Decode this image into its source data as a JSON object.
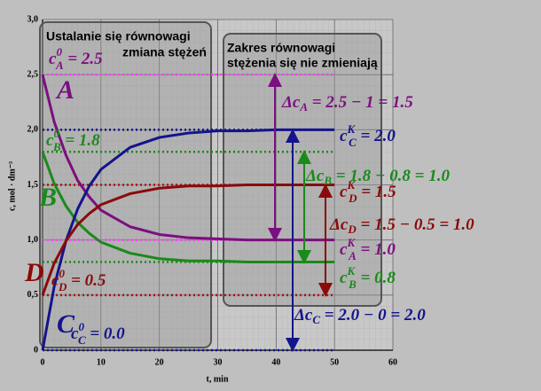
{
  "chart_data": {
    "type": "line",
    "y_label": "c, mol · dm⁻³",
    "x_label": "t, min",
    "xlim": [
      0,
      60
    ],
    "xticks": [
      0,
      10,
      20,
      30,
      40,
      50,
      60
    ],
    "ylim": [
      0,
      3
    ],
    "yticks": [
      0,
      {
        "value": 0.5,
        "label": "0,5"
      },
      {
        "value": 1,
        "label": "1,0"
      },
      {
        "value": 1.5,
        "label": "1,5"
      },
      {
        "value": 2,
        "label": "2,0"
      },
      {
        "value": 2.5,
        "label": "2,5"
      },
      {
        "value": 3,
        "label": "3,0"
      }
    ],
    "grid": true,
    "x": [
      0,
      2,
      4,
      6,
      8,
      10,
      15,
      20,
      25,
      30,
      35,
      40,
      45,
      50
    ],
    "series": [
      {
        "name": "A",
        "color": "#7b0f7f",
        "values": [
          2.5,
          2.07,
          1.77,
          1.54,
          1.39,
          1.27,
          1.12,
          1.05,
          1.02,
          1.01,
          1.0,
          1.0,
          1.0,
          1.0
        ]
      },
      {
        "name": "B",
        "color": "#1a8a1a",
        "values": [
          1.8,
          1.51,
          1.31,
          1.16,
          1.06,
          0.98,
          0.88,
          0.83,
          0.81,
          0.81,
          0.8,
          0.8,
          0.8,
          0.8
        ]
      },
      {
        "name": "C",
        "color": "#14148c",
        "values": [
          0,
          0.58,
          0.99,
          1.28,
          1.49,
          1.64,
          1.84,
          1.93,
          1.97,
          1.99,
          1.99,
          2.0,
          2.0,
          2.0
        ]
      },
      {
        "name": "D",
        "color": "#8b0a0a",
        "values": [
          0.5,
          0.79,
          0.99,
          1.14,
          1.24,
          1.32,
          1.42,
          1.47,
          1.49,
          1.49,
          1.5,
          1.5,
          1.5,
          1.5
        ]
      }
    ],
    "reference_lines": [
      {
        "value": 2.5,
        "color": "#ff40ff"
      },
      {
        "value": 1.0,
        "color": "#ff40ff"
      },
      {
        "value": 1.8,
        "color": "#1a8a1a"
      },
      {
        "value": 0.8,
        "color": "#1a8a1a"
      },
      {
        "value": 2.0,
        "color": "#14148c"
      },
      {
        "value": 0,
        "color": "#14148c"
      },
      {
        "value": 1.5,
        "color": "#b01010"
      },
      {
        "value": 0.5,
        "color": "#b01010"
      }
    ],
    "phases": [
      {
        "title": "Ustalanie się równowagi",
        "subtitle": "zmiana stężeń"
      },
      {
        "title": "Zakres równowagi",
        "subtitle": "stężenia się nie zmieniają"
      }
    ],
    "annotations": [
      {
        "var": "c",
        "sub": "A",
        "sup": "0",
        "rest": " = 2.5",
        "color": "#7b0f7f"
      },
      {
        "var": "c",
        "sub": "B",
        "sup": "0",
        "rest": " = 1.8",
        "color": "#1a8a1a"
      },
      {
        "var": "c",
        "sub": "D",
        "sup": "0",
        "rest": " = 0.5",
        "color": "#8b0a0a"
      },
      {
        "var": "c",
        "sub": "C",
        "sup": "0",
        "rest": " = 0.0",
        "color": "#14148c"
      },
      {
        "var": "c",
        "sub": "C",
        "sup": "K",
        "rest": " = 2.0",
        "color": "#14148c"
      },
      {
        "var": "c",
        "sub": "D",
        "sup": "K",
        "rest": " = 1.5",
        "color": "#8b0a0a"
      },
      {
        "var": "c",
        "sub": "A",
        "sup": "K",
        "rest": " = 1.0",
        "color": "#7b0f7f"
      },
      {
        "var": "c",
        "sub": "B",
        "sup": "K",
        "rest": " = 0.8",
        "color": "#1a8a1a"
      },
      {
        "var": "Δc",
        "sub": "A",
        "rest": " = 2.5 − 1 = 1.5",
        "color": "#7b0f7f"
      },
      {
        "var": "Δc",
        "sub": "B",
        "rest": " = 1.8 − 0.8 = 1.0",
        "color": "#1a8a1a"
      },
      {
        "var": "Δc",
        "sub": "D",
        "rest": " = 1.5 − 0.5 = 1.0",
        "color": "#8b0a0a"
      },
      {
        "var": "Δc",
        "sub": "C",
        "rest": " = 2.0 − 0 = 2.0",
        "color": "#14148c"
      }
    ]
  }
}
